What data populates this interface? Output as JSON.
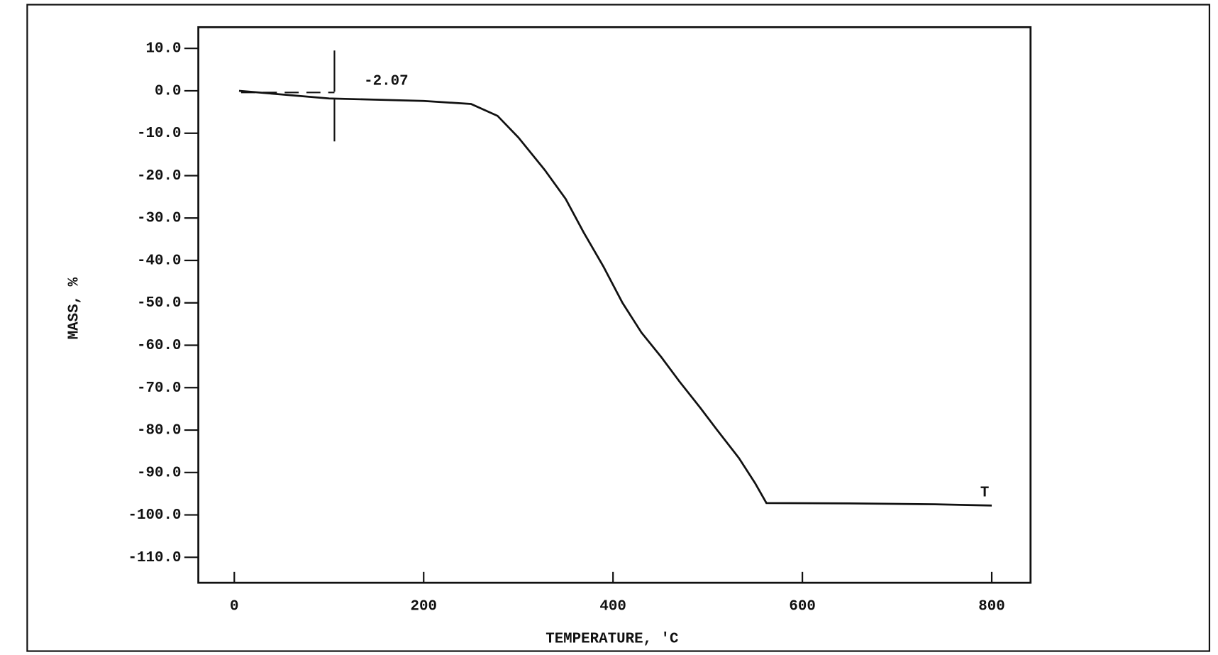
{
  "chart_data": {
    "type": "line",
    "x_label": "TEMPERATURE, 'C",
    "y_label": "MASS, %",
    "annotations": [
      "-2.07",
      "T"
    ],
    "xlim": [
      -38,
      841
    ],
    "ylim": [
      -116,
      15
    ],
    "xticks": [
      0,
      200,
      400,
      600,
      800
    ],
    "yticks": [
      {
        "value": 10,
        "label": "10.0"
      },
      {
        "value": 0,
        "label": "0.0"
      },
      {
        "value": -10,
        "label": "-10.0"
      },
      {
        "value": -20,
        "label": "-20.0"
      },
      {
        "value": -30,
        "label": "-30.0"
      },
      {
        "value": -40,
        "label": "-40.0"
      },
      {
        "value": -50,
        "label": "-50.0"
      },
      {
        "value": -60,
        "label": "-60.0"
      },
      {
        "value": -70,
        "label": "-70.0"
      },
      {
        "value": -80,
        "label": "-80.0"
      },
      {
        "value": -90,
        "label": "-90.0"
      },
      {
        "value": -100,
        "label": "-100.0"
      },
      {
        "value": -110,
        "label": "-110.0"
      }
    ],
    "grid": false,
    "series": [
      {
        "color": "#111111",
        "x": [
          5,
          100,
          200,
          250,
          278,
          300,
          328,
          350,
          369,
          390,
          410,
          430,
          451,
          470,
          492,
          510,
          533,
          550,
          562,
          650,
          740,
          800
        ],
        "values": [
          0,
          -1.8,
          -2.4,
          -3.1,
          -5.9,
          -11,
          -18.7,
          -25.5,
          -33.4,
          -41.5,
          -50,
          -57,
          -62.8,
          -68.5,
          -74.7,
          -80,
          -86.6,
          -92.5,
          -97.2,
          -97.3,
          -97.5,
          -97.8
        ]
      }
    ]
  }
}
